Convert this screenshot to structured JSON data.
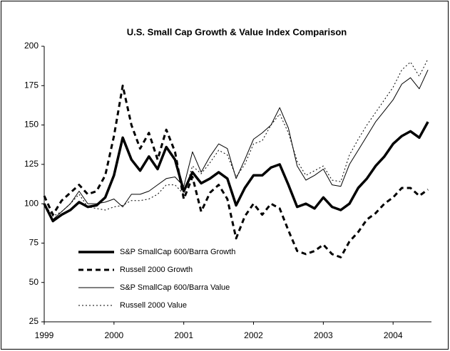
{
  "chart_data": {
    "type": "line",
    "title": "U.S. Small Cap Growth & Value Index Comparison",
    "x": [
      1999,
      1999.125,
      1999.25,
      1999.375,
      1999.5,
      1999.625,
      1999.75,
      1999.875,
      2000,
      2000.125,
      2000.25,
      2000.375,
      2000.5,
      2000.625,
      2000.75,
      2000.875,
      2001,
      2001.125,
      2001.25,
      2001.375,
      2001.5,
      2001.625,
      2001.75,
      2001.875,
      2002,
      2002.125,
      2002.25,
      2002.375,
      2002.5,
      2002.625,
      2002.75,
      2002.875,
      2003,
      2003.125,
      2003.25,
      2003.375,
      2003.5,
      2003.625,
      2003.75,
      2003.875,
      2004,
      2004.125,
      2004.25,
      2004.375,
      2004.5
    ],
    "series": [
      {
        "name": "S&P SmallCap 600/Barra Growth",
        "color": "#000000",
        "linestyle": "solid",
        "linewidth": 3.5,
        "values": [
          100,
          89,
          93,
          96,
          101,
          98,
          99,
          104,
          118,
          142,
          128,
          121,
          130,
          122,
          136,
          128,
          108,
          120,
          113,
          116,
          120,
          116,
          99,
          110,
          118,
          118,
          123,
          125,
          112,
          98,
          100,
          97,
          104,
          98,
          96,
          100,
          110,
          116,
          124,
          130,
          138,
          143,
          146,
          142,
          152
        ]
      },
      {
        "name": "Russell 2000 Growth",
        "color": "#000000",
        "linestyle": "dashed",
        "linewidth": 3,
        "values": [
          105,
          93,
          102,
          107,
          112,
          106,
          108,
          118,
          143,
          175,
          150,
          135,
          145,
          128,
          147,
          133,
          103,
          117,
          95,
          107,
          112,
          103,
          78,
          92,
          100,
          93,
          100,
          97,
          83,
          70,
          68,
          70,
          74,
          68,
          66,
          76,
          82,
          90,
          94,
          100,
          104,
          110,
          110,
          105,
          109
        ]
      },
      {
        "name": "S&P SmallCap 600/Barra Value",
        "color": "#000000",
        "linestyle": "solid",
        "linewidth": 1,
        "values": [
          100,
          90,
          95,
          100,
          108,
          100,
          100,
          101,
          103,
          98,
          106,
          106,
          108,
          112,
          116,
          117,
          111,
          133,
          120,
          130,
          138,
          135,
          116,
          128,
          141,
          145,
          150,
          161,
          148,
          124,
          115,
          118,
          122,
          112,
          111,
          125,
          134,
          143,
          152,
          159,
          166,
          176,
          180,
          173,
          185
        ]
      },
      {
        "name": "Russell 2000 Value",
        "color": "#000000",
        "linestyle": "dotted",
        "linewidth": 1,
        "values": [
          100,
          92,
          95,
          100,
          106,
          98,
          97,
          96,
          98,
          99,
          102,
          102,
          103,
          106,
          112,
          112,
          106,
          124,
          119,
          126,
          134,
          131,
          117,
          125,
          138,
          140,
          150,
          157,
          145,
          127,
          118,
          121,
          124,
          115,
          114,
          131,
          141,
          150,
          158,
          166,
          174,
          185,
          190,
          181,
          192
        ]
      }
    ],
    "xlim": [
      1999,
      2004.55
    ],
    "xticks": [
      1999,
      2000,
      2001,
      2002,
      2003,
      2004
    ],
    "ylim": [
      25,
      200
    ],
    "yticks": [
      25,
      50,
      75,
      100,
      125,
      150,
      175,
      200
    ],
    "grid": false,
    "legend": "lower left"
  }
}
